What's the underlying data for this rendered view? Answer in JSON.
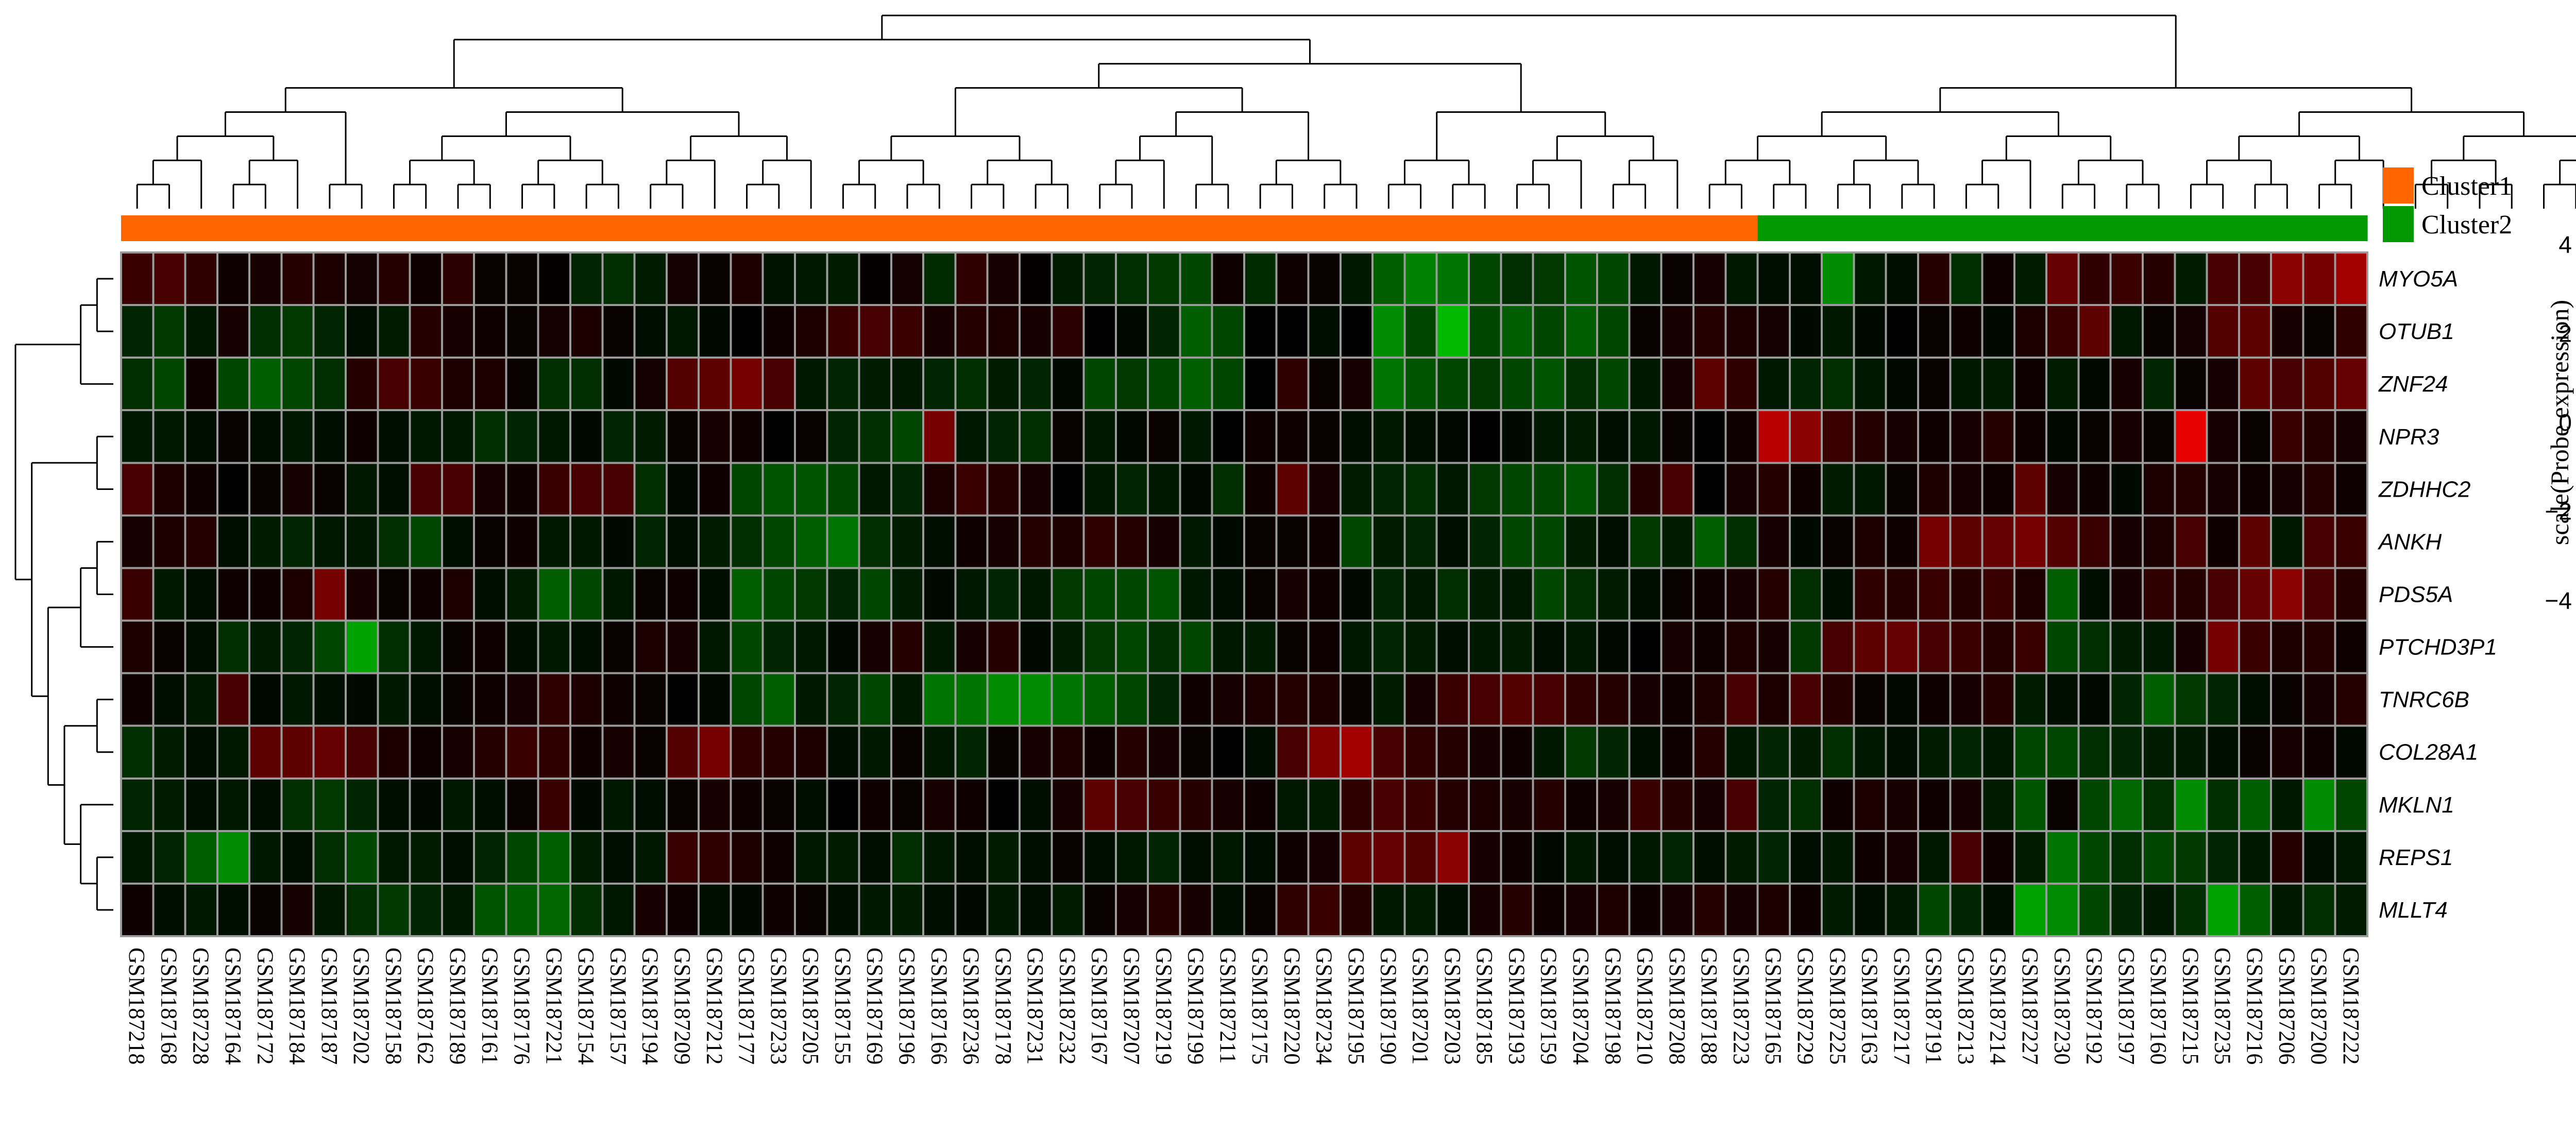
{
  "chart_data": {
    "type": "heatmap",
    "rows": [
      "MYO5A",
      "OTUB1",
      "ZNF24",
      "NPR3",
      "ZDHHC2",
      "ANKH",
      "PDS5A",
      "PTCHD3P1",
      "TNRC6B",
      "COL28A1",
      "MKLN1",
      "REPS1",
      "MLLT4"
    ],
    "columns": [
      "GSM187218",
      "GSM187168",
      "GSM187228",
      "GSM187164",
      "GSM187172",
      "GSM187184",
      "GSM187187",
      "GSM187202",
      "GSM187158",
      "GSM187162",
      "GSM187189",
      "GSM187161",
      "GSM187176",
      "GSM187221",
      "GSM187154",
      "GSM187157",
      "GSM187194",
      "GSM187209",
      "GSM187212",
      "GSM187177",
      "GSM187233",
      "GSM187205",
      "GSM187155",
      "GSM187169",
      "GSM187196",
      "GSM187166",
      "GSM187236",
      "GSM187178",
      "GSM187231",
      "GSM187232",
      "GSM187167",
      "GSM187207",
      "GSM187219",
      "GSM187199",
      "GSM187211",
      "GSM187175",
      "GSM187220",
      "GSM187234",
      "GSM187195",
      "GSM187190",
      "GSM187201",
      "GSM187203",
      "GSM187185",
      "GSM187193",
      "GSM187159",
      "GSM187204",
      "GSM187198",
      "GSM187210",
      "GSM187208",
      "GSM187188",
      "GSM187223",
      "GSM187165",
      "GSM187229",
      "GSM187225",
      "GSM187163",
      "GSM187217",
      "GSM187191",
      "GSM187213",
      "GSM187214",
      "GSM187227",
      "GSM187230",
      "GSM187192",
      "GSM187197",
      "GSM187160",
      "GSM187215",
      "GSM187235",
      "GSM187216",
      "GSM187206",
      "GSM187200",
      "GSM187222"
    ],
    "column_clusters": [
      "Cluster1",
      "Cluster1",
      "Cluster1",
      "Cluster1",
      "Cluster1",
      "Cluster1",
      "Cluster1",
      "Cluster1",
      "Cluster1",
      "Cluster1",
      "Cluster1",
      "Cluster1",
      "Cluster1",
      "Cluster1",
      "Cluster1",
      "Cluster1",
      "Cluster1",
      "Cluster1",
      "Cluster1",
      "Cluster1",
      "Cluster1",
      "Cluster1",
      "Cluster1",
      "Cluster1",
      "Cluster1",
      "Cluster1",
      "Cluster1",
      "Cluster1",
      "Cluster1",
      "Cluster1",
      "Cluster1",
      "Cluster1",
      "Cluster1",
      "Cluster1",
      "Cluster1",
      "Cluster1",
      "Cluster1",
      "Cluster1",
      "Cluster1",
      "Cluster1",
      "Cluster1",
      "Cluster1",
      "Cluster1",
      "Cluster1",
      "Cluster1",
      "Cluster1",
      "Cluster1",
      "Cluster1",
      "Cluster1",
      "Cluster1",
      "Cluster1",
      "Cluster2",
      "Cluster2",
      "Cluster2",
      "Cluster2",
      "Cluster2",
      "Cluster2",
      "Cluster2",
      "Cluster2",
      "Cluster2",
      "Cluster2",
      "Cluster2",
      "Cluster2",
      "Cluster2",
      "Cluster2",
      "Cluster2",
      "Cluster2",
      "Cluster2",
      "Cluster2",
      "Cluster2"
    ],
    "values": [
      [
        1.2,
        1.5,
        1.0,
        0.3,
        0.5,
        0.8,
        0.6,
        0.4,
        0.8,
        0.3,
        0.9,
        0.2,
        0.2,
        0.1,
        -0.8,
        -1.0,
        -0.6,
        0.4,
        0.2,
        0.6,
        -0.4,
        -0.5,
        -0.6,
        0.1,
        0.4,
        -0.9,
        1.0,
        0.5,
        0.1,
        -0.6,
        -0.8,
        -1.0,
        -1.2,
        -1.5,
        0.3,
        -0.9,
        0.3,
        0.2,
        -0.5,
        -2.0,
        -2.8,
        -2.5,
        -1.5,
        -1.0,
        -1.2,
        -1.8,
        -1.5,
        -0.5,
        0.2,
        0.5,
        -0.5,
        -0.3,
        -0.3,
        -3.0,
        -0.5,
        -0.3,
        0.8,
        -1.0,
        0.3,
        -0.6,
        2.2,
        1.0,
        1.2,
        0.8,
        -0.6,
        1.5,
        1.5,
        3.0,
        2.5,
        3.5
      ],
      [
        -0.8,
        -1.2,
        -0.5,
        0.5,
        -1.0,
        -1.2,
        -0.8,
        -0.3,
        -0.6,
        0.8,
        0.5,
        0.3,
        0.2,
        0.4,
        0.6,
        0.2,
        -0.3,
        -0.5,
        -0.2,
        0.0,
        0.3,
        0.6,
        1.2,
        1.5,
        1.2,
        0.5,
        0.8,
        0.6,
        0.5,
        0.9,
        0.0,
        -0.2,
        -0.8,
        -2.0,
        -1.5,
        0.0,
        0.0,
        -0.3,
        0.0,
        -3.0,
        -1.5,
        -4.0,
        -1.5,
        -2.0,
        -1.5,
        -2.0,
        -1.5,
        0.2,
        0.5,
        0.8,
        0.6,
        0.4,
        -0.2,
        -0.5,
        -0.2,
        0.0,
        0.2,
        0.3,
        -0.2,
        0.6,
        1.2,
        2.0,
        -0.5,
        0.2,
        0.4,
        1.8,
        2.0,
        0.5,
        0.2,
        1.0
      ],
      [
        -1.0,
        -1.5,
        0.3,
        -1.5,
        -2.0,
        -1.5,
        -1.0,
        0.8,
        1.5,
        1.2,
        0.6,
        0.6,
        0.2,
        -1.0,
        -1.0,
        -0.2,
        0.4,
        1.8,
        2.0,
        2.5,
        1.5,
        -0.5,
        -0.8,
        -0.6,
        -0.5,
        -0.8,
        -1.0,
        -0.6,
        -0.8,
        -0.2,
        -1.5,
        -1.2,
        -1.5,
        -2.0,
        -1.5,
        0.0,
        1.0,
        0.2,
        0.5,
        -2.5,
        -1.8,
        -1.5,
        -1.2,
        -1.5,
        -1.8,
        -1.0,
        -1.5,
        -0.5,
        0.5,
        2.0,
        1.0,
        -0.5,
        -0.8,
        -1.0,
        -0.5,
        -0.2,
        0.2,
        -0.5,
        -0.6,
        0.3,
        -0.6,
        -0.2,
        0.5,
        -0.8,
        0.2,
        0.5,
        2.0,
        1.5,
        1.8,
        2.2
      ],
      [
        -0.5,
        -0.5,
        -0.3,
        0.2,
        -0.3,
        -0.5,
        -0.3,
        0.3,
        -0.3,
        -0.5,
        -0.5,
        -1.0,
        -0.8,
        -0.5,
        -0.2,
        -0.8,
        -0.6,
        0.2,
        0.5,
        0.3,
        0.0,
        0.2,
        -0.8,
        -1.0,
        -1.5,
        2.5,
        -0.5,
        -0.8,
        -1.0,
        0.2,
        -0.5,
        -0.2,
        0.2,
        -0.5,
        0.0,
        0.3,
        0.3,
        0.2,
        -0.3,
        -0.5,
        -0.3,
        -0.2,
        0.0,
        -0.2,
        -0.5,
        -0.6,
        -0.3,
        -0.5,
        0.2,
        0.0,
        0.3,
        4.0,
        3.0,
        1.2,
        0.8,
        0.5,
        0.3,
        0.5,
        0.8,
        0.3,
        -0.2,
        0.2,
        0.5,
        0.2,
        5.0,
        0.5,
        0.2,
        1.2,
        0.8,
        0.5
      ],
      [
        1.5,
        0.6,
        0.3,
        0.0,
        0.2,
        0.5,
        0.2,
        -0.5,
        -0.3,
        1.5,
        1.5,
        0.5,
        0.3,
        1.2,
        1.5,
        1.5,
        -1.0,
        -0.2,
        0.3,
        -1.5,
        -1.8,
        -1.8,
        -1.5,
        -0.5,
        -0.8,
        0.6,
        1.2,
        0.8,
        0.5,
        0.0,
        -0.5,
        -0.8,
        -0.5,
        -0.2,
        -1.0,
        0.3,
        2.0,
        0.5,
        -0.6,
        -0.8,
        -1.0,
        -0.5,
        -1.2,
        -1.5,
        -1.5,
        -1.8,
        -1.0,
        0.8,
        1.5,
        0.0,
        0.5,
        0.8,
        0.3,
        -0.6,
        -0.5,
        0.2,
        0.6,
        0.5,
        0.3,
        2.0,
        0.5,
        0.3,
        -0.2,
        0.6,
        0.8,
        0.5,
        0.3,
        0.5,
        0.8,
        0.3
      ],
      [
        0.5,
        0.6,
        0.8,
        -0.3,
        -0.6,
        -0.8,
        -0.5,
        -0.5,
        -1.0,
        -1.5,
        -0.3,
        0.2,
        0.3,
        -0.5,
        -0.5,
        -0.2,
        -0.8,
        -0.3,
        -0.6,
        -1.0,
        -1.5,
        -2.0,
        -2.5,
        -1.0,
        -0.6,
        -0.3,
        0.3,
        0.5,
        0.8,
        0.6,
        1.0,
        0.8,
        0.5,
        -0.5,
        -0.2,
        0.2,
        0.2,
        0.3,
        -1.5,
        -0.6,
        -0.8,
        -0.3,
        -0.8,
        -1.5,
        -1.5,
        -0.6,
        -0.3,
        -1.2,
        -0.6,
        -2.0,
        -1.0,
        0.5,
        -0.2,
        0.2,
        0.6,
        0.3,
        2.5,
        2.0,
        2.2,
        2.5,
        1.8,
        1.2,
        0.5,
        0.6,
        1.5,
        0.3,
        2.0,
        -0.5,
        1.5,
        1.2
      ],
      [
        1.2,
        -0.5,
        -0.3,
        0.3,
        0.3,
        0.6,
        2.5,
        0.5,
        0.2,
        0.3,
        0.6,
        -0.3,
        -0.6,
        -2.0,
        -1.5,
        -0.5,
        0.2,
        0.3,
        -0.3,
        -2.0,
        -1.5,
        -1.2,
        -0.8,
        -1.5,
        -0.6,
        -0.2,
        -0.5,
        -0.8,
        -0.5,
        -1.2,
        -1.5,
        -1.5,
        -1.8,
        -0.5,
        -0.3,
        0.2,
        0.5,
        0.3,
        -0.2,
        -0.8,
        -0.5,
        -1.0,
        -0.6,
        -0.5,
        -1.5,
        -1.0,
        -0.6,
        -0.3,
        0.2,
        0.3,
        0.5,
        0.8,
        -1.0,
        -0.3,
        1.0,
        0.8,
        1.2,
        0.8,
        1.2,
        0.6,
        -2.0,
        -0.3,
        0.5,
        1.0,
        0.8,
        1.5,
        2.2,
        3.0,
        1.5,
        0.8
      ],
      [
        0.6,
        0.2,
        -0.3,
        -1.0,
        -0.6,
        -0.8,
        -1.5,
        -3.5,
        -1.0,
        -0.5,
        0.2,
        0.3,
        -0.3,
        -0.5,
        -0.3,
        0.2,
        0.6,
        0.5,
        -0.5,
        -1.5,
        -0.8,
        -0.5,
        -0.2,
        0.5,
        0.8,
        -0.5,
        0.5,
        0.8,
        -0.2,
        -0.6,
        -1.2,
        -1.5,
        -1.0,
        -1.5,
        -0.5,
        -0.6,
        0.2,
        0.3,
        -0.5,
        -0.8,
        -0.6,
        -0.3,
        -0.5,
        -0.6,
        -0.3,
        -0.5,
        -0.2,
        0.0,
        0.5,
        0.3,
        0.6,
        0.5,
        -1.2,
        1.5,
        2.0,
        2.2,
        1.5,
        1.2,
        0.8,
        1.2,
        -1.5,
        -1.0,
        -0.6,
        -0.5,
        0.5,
        2.5,
        1.2,
        0.6,
        0.8,
        0.3
      ],
      [
        0.3,
        -0.3,
        -0.5,
        1.5,
        -0.2,
        -0.5,
        -0.3,
        -0.2,
        -0.5,
        -0.3,
        0.2,
        0.3,
        0.5,
        1.0,
        0.6,
        0.3,
        0.2,
        0.0,
        -0.2,
        -1.5,
        -2.0,
        -0.5,
        -0.8,
        -1.5,
        -0.5,
        -2.5,
        -2.5,
        -3.0,
        -3.0,
        -2.5,
        -2.0,
        -1.5,
        -0.8,
        0.3,
        0.5,
        0.6,
        0.8,
        0.6,
        0.2,
        -0.6,
        0.5,
        1.2,
        1.5,
        1.8,
        1.5,
        1.0,
        0.8,
        0.5,
        0.3,
        0.6,
        1.5,
        0.6,
        1.5,
        0.8,
        0.2,
        -0.2,
        0.3,
        0.5,
        0.8,
        -0.6,
        -0.3,
        -0.2,
        -0.8,
        -2.0,
        -1.2,
        -0.8,
        -0.3,
        0.2,
        0.5,
        0.8
      ],
      [
        -1.0,
        -0.6,
        -0.3,
        -0.5,
        2.0,
        2.0,
        2.2,
        1.5,
        0.6,
        0.3,
        0.5,
        0.8,
        1.2,
        1.0,
        0.3,
        0.5,
        0.2,
        1.8,
        2.5,
        1.0,
        0.8,
        0.6,
        -0.3,
        -0.5,
        0.2,
        -0.5,
        -0.8,
        0.2,
        0.5,
        0.6,
        0.3,
        0.8,
        0.5,
        0.2,
        0.0,
        -0.3,
        1.5,
        2.8,
        3.5,
        1.5,
        1.0,
        0.8,
        0.5,
        0.3,
        -0.5,
        -1.2,
        -0.8,
        -0.3,
        0.3,
        0.8,
        -0.5,
        -0.8,
        -0.6,
        -1.0,
        -0.5,
        -0.3,
        -0.6,
        -0.8,
        -0.5,
        -1.5,
        -1.5,
        -1.0,
        -0.8,
        -0.6,
        -0.5,
        -0.3,
        0.2,
        0.5,
        0.3,
        -0.2
      ],
      [
        -0.8,
        -0.6,
        -0.3,
        -0.5,
        -0.3,
        -1.0,
        -1.2,
        -0.8,
        -0.3,
        -0.2,
        -0.5,
        -0.3,
        0.2,
        1.2,
        -0.2,
        -0.5,
        -0.3,
        0.2,
        0.5,
        0.3,
        0.2,
        -0.3,
        0.0,
        0.3,
        0.2,
        0.5,
        0.3,
        0.0,
        -0.3,
        0.5,
        2.0,
        1.5,
        1.2,
        0.8,
        0.5,
        0.3,
        -0.5,
        -0.6,
        1.0,
        1.5,
        1.2,
        0.8,
        0.6,
        0.5,
        0.8,
        0.3,
        0.5,
        1.2,
        0.8,
        0.5,
        1.5,
        -0.8,
        -1.0,
        0.3,
        0.6,
        0.5,
        0.3,
        0.5,
        -0.6,
        -1.8,
        0.2,
        -1.5,
        -2.2,
        -1.0,
        -3.0,
        -1.0,
        -2.0,
        -0.5,
        -3.0,
        -1.5
      ],
      [
        -0.5,
        -0.8,
        -2.0,
        -3.0,
        -0.5,
        -0.3,
        -1.0,
        -1.5,
        -0.5,
        -0.6,
        -0.3,
        -0.8,
        -1.5,
        -2.0,
        -0.6,
        -0.3,
        -0.5,
        1.2,
        1.0,
        0.6,
        0.3,
        -0.5,
        -0.6,
        -0.3,
        -1.0,
        -0.5,
        -0.3,
        -0.6,
        -0.3,
        0.2,
        -0.3,
        -0.5,
        -0.8,
        -0.3,
        -0.5,
        -0.3,
        0.3,
        0.5,
        2.0,
        2.2,
        1.8,
        3.0,
        0.5,
        0.3,
        -0.2,
        -0.5,
        -0.3,
        -0.5,
        -0.8,
        -0.3,
        -0.6,
        -0.8,
        -0.3,
        -0.5,
        0.3,
        0.5,
        -0.5,
        1.5,
        0.3,
        -0.6,
        -2.5,
        -1.5,
        -1.0,
        -1.5,
        -1.2,
        -0.8,
        -0.5,
        0.8,
        -0.3,
        -0.5
      ],
      [
        0.3,
        -0.3,
        -0.5,
        -0.3,
        0.2,
        0.5,
        -0.5,
        -1.0,
        -1.2,
        -0.8,
        -0.5,
        -1.8,
        -2.0,
        -2.2,
        -1.0,
        -0.5,
        0.5,
        0.3,
        -0.3,
        -0.2,
        0.3,
        0.2,
        -0.3,
        -0.5,
        -0.6,
        -0.3,
        -0.2,
        -0.5,
        -0.3,
        -0.6,
        0.2,
        0.5,
        0.8,
        0.5,
        -0.3,
        0.2,
        1.0,
        1.2,
        0.8,
        -0.5,
        -0.6,
        -0.3,
        0.5,
        0.8,
        0.3,
        0.5,
        0.6,
        0.3,
        0.5,
        0.8,
        0.5,
        0.6,
        0.3,
        -0.6,
        -0.3,
        -0.5,
        -1.5,
        -0.8,
        -0.3,
        -3.5,
        -3.0,
        -1.5,
        -0.8,
        -0.5,
        -1.0,
        -3.5,
        -2.0,
        -0.5,
        -1.0,
        -0.6
      ]
    ],
    "color_scale": {
      "low": "#00ff00",
      "mid": "#000000",
      "high": "#ff0000",
      "min": -5.5,
      "max": 5.5
    },
    "scale_ticks": [
      4,
      2,
      0,
      -2,
      -4
    ],
    "scale_tick_labels": [
      "4",
      "2",
      "0",
      "−2",
      "−4"
    ],
    "scale_title": "scale(Probe expression)",
    "legend": [
      {
        "name": "Cluster1",
        "color": "#ff6600"
      },
      {
        "name": "Cluster2",
        "color": "#009900"
      }
    ],
    "row_dendrogram_order": [
      "MYO5A",
      "OTUB1",
      "ZNF24",
      "NPR3",
      "ZDHHC2",
      "ANKH",
      "PDS5A",
      "PTCHD3P1",
      "TNRC6B",
      "COL28A1",
      "MKLN1",
      "REPS1",
      "MLLT4"
    ],
    "column_dendrogram_shown": true,
    "row_dendrogram_shown": true,
    "grid": true
  }
}
